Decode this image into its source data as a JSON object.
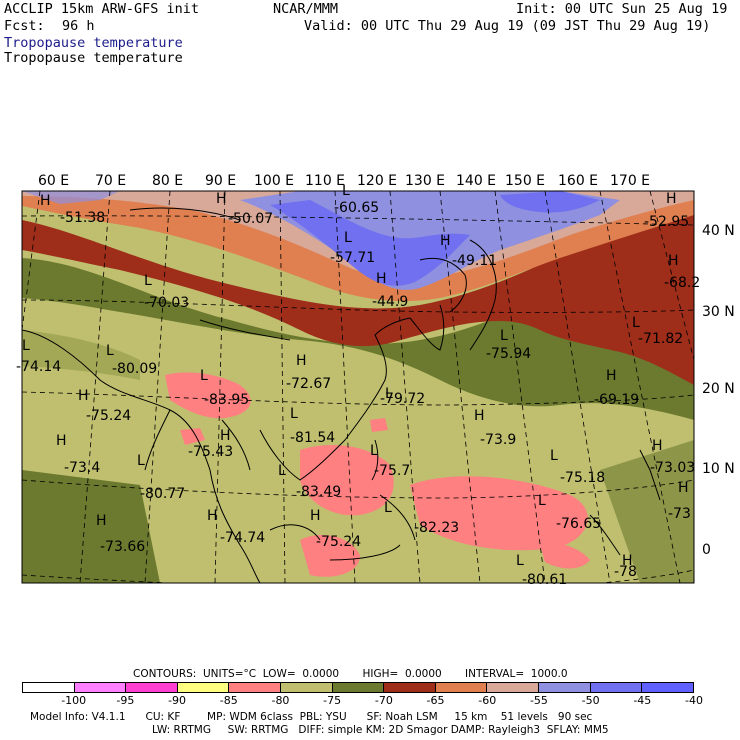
{
  "header": {
    "model": "ACCLIP 15km ARW-GFS init",
    "center": "NCAR/MMM",
    "init": "Init: 00 UTC Sun 25 Aug 19",
    "fcst_label": "Fcst:",
    "fcst_value": "96 h",
    "valid": "Valid: 00 UTC Thu 29 Aug 19 (09 JST Thu 29 Aug 19)",
    "field_title_1": "Tropopause temperature",
    "field_title_2": "Tropopause temperature"
  },
  "map": {
    "lon_labels": [
      "60 E",
      "70 E",
      "80 E",
      "90 E",
      "100 E",
      "110 E",
      "120 E",
      "130 E",
      "140 E",
      "150 E",
      "160 E",
      "170 E"
    ],
    "lat_labels": [
      "40 N",
      "30 N",
      "20 N",
      "10 N",
      "0"
    ],
    "extrema": [
      {
        "type": "H",
        "value": "-51.38"
      },
      {
        "type": "H",
        "value": "-50.07"
      },
      {
        "type": "L",
        "value": "-60.65"
      },
      {
        "type": "H",
        "value": "-52.95"
      },
      {
        "type": "L",
        "value": "-57.71"
      },
      {
        "type": "H",
        "value": "-49.11"
      },
      {
        "type": "H",
        "value": "-44.9"
      },
      {
        "type": "L",
        "value": "-70.03"
      },
      {
        "type": "H",
        "value": "-68.2"
      },
      {
        "type": "L",
        "value": "-71.82"
      },
      {
        "type": "L",
        "value": "-75.94"
      },
      {
        "type": "L",
        "value": "-74.14"
      },
      {
        "type": "L",
        "value": "-80.09"
      },
      {
        "type": "H",
        "value": "-72.67"
      },
      {
        "type": "H",
        "value": "-69.19"
      },
      {
        "type": "L",
        "value": "-83.95"
      },
      {
        "type": "L",
        "value": "-79.72"
      },
      {
        "type": "H",
        "value": "-75.24"
      },
      {
        "type": "H",
        "value": "-73.9"
      },
      {
        "type": "L",
        "value": "-81.54"
      },
      {
        "type": "H",
        "value": "-75.43"
      },
      {
        "type": "H",
        "value": "-73.4"
      },
      {
        "type": "L",
        "value": "-75.7"
      },
      {
        "type": "L",
        "value": "-75.18"
      },
      {
        "type": "H",
        "value": "-73.03"
      },
      {
        "type": "L",
        "value": "-80.77"
      },
      {
        "type": "L",
        "value": "-83.49"
      },
      {
        "type": "L",
        "value": "-82.23"
      },
      {
        "type": "L",
        "value": "-76.65"
      },
      {
        "type": "H",
        "value": "-73"
      },
      {
        "type": "H",
        "value": "-73.66"
      },
      {
        "type": "H",
        "value": "-74.74"
      },
      {
        "type": "H",
        "value": "-75.24"
      },
      {
        "type": "L",
        "value": "-80.61"
      },
      {
        "type": "H",
        "value": "-78"
      }
    ]
  },
  "footer": {
    "contours": "CONTOURS:  UNITS=°C  LOW=  0.0000       HIGH=  0.0000       INTERVAL=  1000.0",
    "legend_colors": [
      "#ffffff",
      "#ff80ff",
      "#ff40d0",
      "#ffff80",
      "#ff8080",
      "#bfbf6f",
      "#6b7a2e",
      "#9e2d1a",
      "#e08050",
      "#d8a898",
      "#9090e0",
      "#7070f0",
      "#6060ff"
    ],
    "legend_ticks": [
      "-100",
      "-95",
      "-90",
      "-85",
      "-80",
      "-75",
      "-70",
      "-65",
      "-60",
      "-55",
      "-50",
      "-45",
      "-40",
      "°C"
    ],
    "model_info_1": "Model Info: V4.1.1      CU: KF        MP: WDM 6class  PBL: YSU      SF: Noah LSM     15 km    51 levels   90 sec",
    "model_info_2": "LW: RRTMG     SW: RRTMG   DIFF: simple KM: 2D Smagor DAMP: Rayleigh3  SFLAY: MM5"
  }
}
